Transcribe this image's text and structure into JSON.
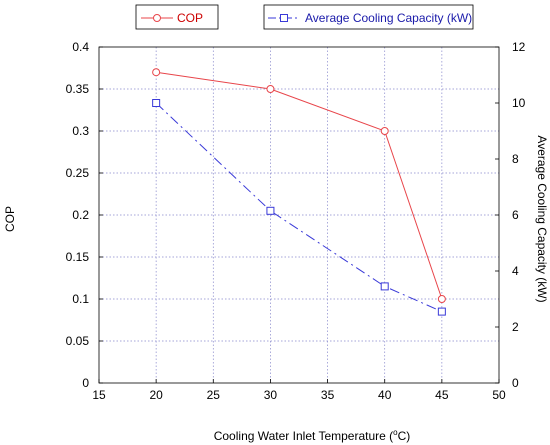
{
  "chart_data": {
    "type": "line",
    "xlabel": "Cooling Water Inlet Temperature",
    "xlabel_unit_sup": "o",
    "xlabel_unit_tail": "C",
    "ylabel_left": "COP",
    "ylabel_right": "Average Cooling Capacity (kW)",
    "xlim": [
      15,
      50
    ],
    "ylim_left": [
      0,
      0.4
    ],
    "ylim_right": [
      0,
      12
    ],
    "x_ticks": [
      "15",
      "20",
      "25",
      "30",
      "35",
      "40",
      "45",
      "50"
    ],
    "y_left_ticks": [
      "0",
      "0.05",
      "0.1",
      "0.15",
      "0.2",
      "0.25",
      "0.3",
      "0.35",
      "0.4"
    ],
    "y_right_ticks": [
      "0",
      "2",
      "4",
      "6",
      "8",
      "10",
      "12"
    ],
    "grid": true,
    "series": [
      {
        "name": "COP",
        "axis": "left",
        "color": "#e8454a",
        "marker": "circle",
        "line_style": "solid",
        "x": [
          20,
          30,
          40,
          45
        ],
        "y": [
          0.37,
          0.35,
          0.3,
          0.1
        ]
      },
      {
        "name": "Average Cooling Capacity (kW)",
        "axis": "right",
        "color": "#3a3ad8",
        "marker": "square",
        "line_style": "dash-dot",
        "x": [
          20,
          30,
          40,
          45
        ],
        "y": [
          10,
          6.15,
          3.45,
          2.55
        ]
      }
    ],
    "legend": {
      "placement": "top",
      "entries": [
        {
          "label": "COP",
          "color": "#e8454a",
          "marker": "circle",
          "line_style": "solid",
          "label_color": "#cc0000"
        },
        {
          "label": "Average Cooling Capacity (kW)",
          "color": "#3a3ad8",
          "marker": "square",
          "line_style": "dash-dot",
          "label_color": "#1a1aaa"
        }
      ]
    }
  }
}
